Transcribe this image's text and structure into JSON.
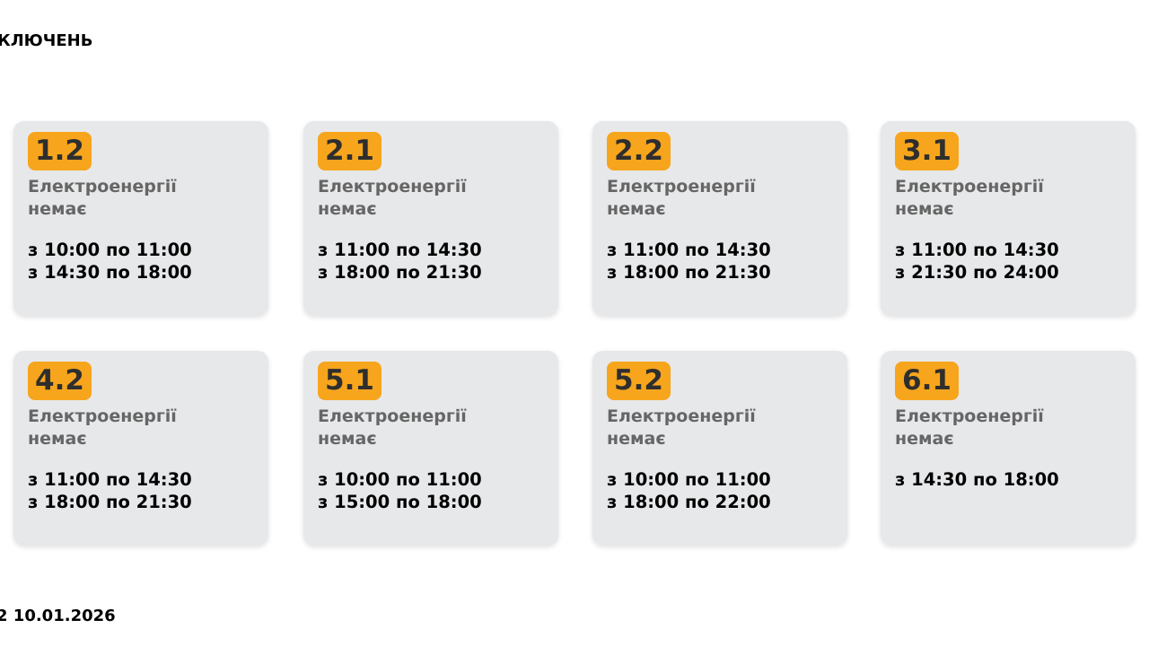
{
  "header": {
    "title": "КЛЮЧЕНЬ"
  },
  "footer": {
    "text": "2 10.01.2026"
  },
  "colors": {
    "badge": "#f7a51c",
    "card": "#e7e8ea"
  },
  "cards": [
    {
      "group": "1.2",
      "status": "Електроенергії немає",
      "times": [
        "з 10:00 по 11:00",
        "з 14:30 по 18:00"
      ]
    },
    {
      "group": "2.1",
      "status": "Електроенергії немає",
      "times": [
        "з 11:00 по 14:30",
        "з 18:00 по 21:30"
      ]
    },
    {
      "group": "2.2",
      "status": "Електроенергії немає",
      "times": [
        "з 11:00 по 14:30",
        "з 18:00 по 21:30"
      ]
    },
    {
      "group": "3.1",
      "status": "Електроенергії немає",
      "times": [
        "з 11:00 по 14:30",
        "з 21:30 по 24:00"
      ]
    },
    {
      "group": "4.2",
      "status": "Електроенергії немає",
      "times": [
        "з 11:00 по 14:30",
        "з 18:00 по 21:30"
      ]
    },
    {
      "group": "5.1",
      "status": "Електроенергії немає",
      "times": [
        "з 10:00 по 11:00",
        "з 15:00 по 18:00"
      ]
    },
    {
      "group": "5.2",
      "status": "Електроенергії немає",
      "times": [
        "з 10:00 по 11:00",
        "з 18:00 по 22:00"
      ]
    },
    {
      "group": "6.1",
      "status": "Електроенергії немає",
      "times": [
        "з 14:30 по 18:00"
      ]
    }
  ]
}
